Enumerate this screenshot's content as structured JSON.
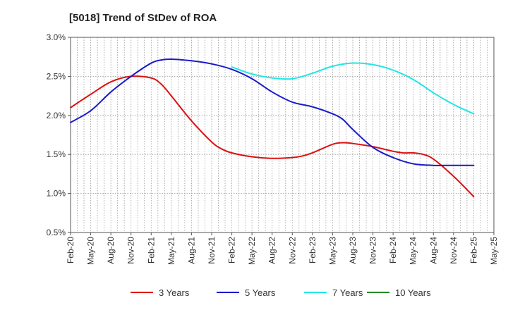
{
  "chart_data": {
    "type": "line",
    "title": "[5018]  Trend of StDev of ROA",
    "x_labels": [
      "Feb-20",
      "May-20",
      "Aug-20",
      "Nov-20",
      "Feb-21",
      "May-21",
      "Aug-21",
      "Nov-21",
      "Feb-22",
      "May-22",
      "Aug-22",
      "Nov-22",
      "Feb-23",
      "May-23",
      "Aug-23",
      "Nov-23",
      "Feb-24",
      "May-24",
      "Aug-24",
      "Nov-24",
      "Feb-25",
      "May-25"
    ],
    "y_ticks": [
      "0.5%",
      "1.0%",
      "1.5%",
      "2.0%",
      "2.5%",
      "3.0%"
    ],
    "ylim": [
      0.5,
      3.0
    ],
    "grid": true,
    "legend_position": "bottom",
    "series": [
      {
        "name": "3 Years",
        "color": "#dd1111",
        "points": [
          [
            0,
            2.1
          ],
          [
            1,
            2.27
          ],
          [
            2,
            2.43
          ],
          [
            3,
            2.5
          ],
          [
            4,
            2.48
          ],
          [
            4.5,
            2.4
          ],
          [
            5,
            2.25
          ],
          [
            6,
            1.93
          ],
          [
            7,
            1.66
          ],
          [
            7.5,
            1.57
          ],
          [
            8,
            1.52
          ],
          [
            9,
            1.47
          ],
          [
            10,
            1.45
          ],
          [
            11,
            1.46
          ],
          [
            11.5,
            1.48
          ],
          [
            12,
            1.52
          ],
          [
            13,
            1.63
          ],
          [
            13.5,
            1.65
          ],
          [
            14,
            1.64
          ],
          [
            15,
            1.6
          ],
          [
            16,
            1.54
          ],
          [
            16.5,
            1.52
          ],
          [
            17,
            1.52
          ],
          [
            17.5,
            1.5
          ],
          [
            18,
            1.44
          ],
          [
            19,
            1.22
          ],
          [
            20,
            0.96
          ]
        ]
      },
      {
        "name": "5 Years",
        "color": "#1a1acc",
        "points": [
          [
            0,
            1.91
          ],
          [
            1,
            2.06
          ],
          [
            2,
            2.3
          ],
          [
            3,
            2.5
          ],
          [
            4,
            2.67
          ],
          [
            4.5,
            2.71
          ],
          [
            5,
            2.72
          ],
          [
            6,
            2.7
          ],
          [
            7,
            2.66
          ],
          [
            8,
            2.59
          ],
          [
            9,
            2.47
          ],
          [
            10,
            2.3
          ],
          [
            11,
            2.17
          ],
          [
            12,
            2.11
          ],
          [
            13,
            2.02
          ],
          [
            13.5,
            1.95
          ],
          [
            14,
            1.82
          ],
          [
            15,
            1.59
          ],
          [
            16,
            1.46
          ],
          [
            17,
            1.38
          ],
          [
            18,
            1.36
          ],
          [
            19,
            1.36
          ],
          [
            20,
            1.36
          ]
        ]
      },
      {
        "name": "7 Years",
        "color": "#22e6e6",
        "points": [
          [
            8,
            2.62
          ],
          [
            9,
            2.53
          ],
          [
            10,
            2.48
          ],
          [
            11,
            2.47
          ],
          [
            12,
            2.54
          ],
          [
            13,
            2.63
          ],
          [
            14,
            2.67
          ],
          [
            15,
            2.65
          ],
          [
            16,
            2.58
          ],
          [
            17,
            2.46
          ],
          [
            18,
            2.29
          ],
          [
            19,
            2.14
          ],
          [
            20,
            2.02
          ]
        ]
      },
      {
        "name": "10 Years",
        "color": "#228b22",
        "points": []
      }
    ]
  }
}
